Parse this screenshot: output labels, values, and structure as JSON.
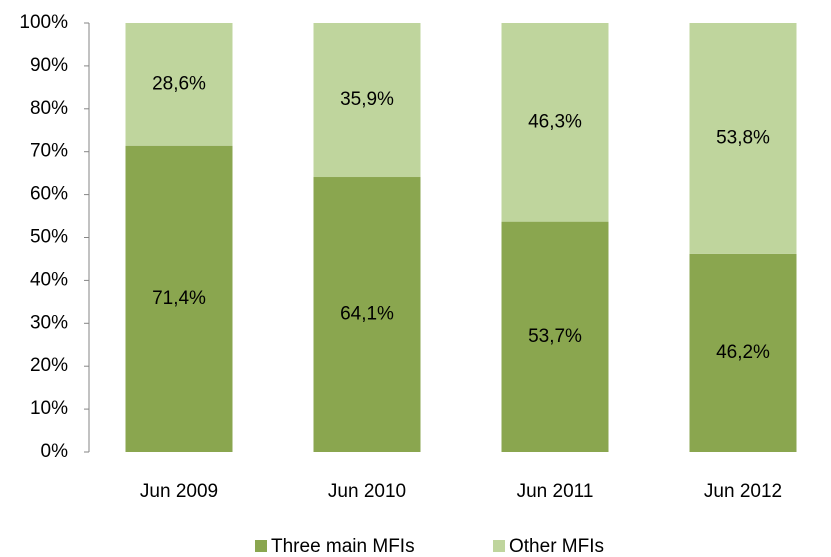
{
  "chart_data": {
    "type": "stacked_bar",
    "categories": [
      "Jun 2009",
      "Jun 2010",
      "Jun 2011",
      "Jun 2012"
    ],
    "series": [
      {
        "name": "Three main MFIs",
        "color": "#8aa64f",
        "values": [
          71.4,
          64.1,
          53.7,
          46.2
        ],
        "value_labels": [
          "71,4%",
          "64,1%",
          "53,7%",
          "46,2%"
        ]
      },
      {
        "name": "Other MFIs",
        "color": "#bfd59d",
        "values": [
          28.6,
          35.9,
          46.3,
          53.8
        ],
        "value_labels": [
          "28,6%",
          "35,9%",
          "46,3%",
          "53,8%"
        ]
      }
    ],
    "ylim": [
      0,
      100
    ],
    "yticks": [
      {
        "value": 0,
        "label": "0%"
      },
      {
        "value": 10,
        "label": "10%"
      },
      {
        "value": 20,
        "label": "20%"
      },
      {
        "value": 30,
        "label": "30%"
      },
      {
        "value": 40,
        "label": "40%"
      },
      {
        "value": 50,
        "label": "50%"
      },
      {
        "value": 60,
        "label": "60%"
      },
      {
        "value": 70,
        "label": "70%"
      },
      {
        "value": 80,
        "label": "80%"
      },
      {
        "value": 90,
        "label": "90%"
      },
      {
        "value": 100,
        "label": "100%"
      }
    ],
    "grid": false,
    "legend": "bottom"
  }
}
